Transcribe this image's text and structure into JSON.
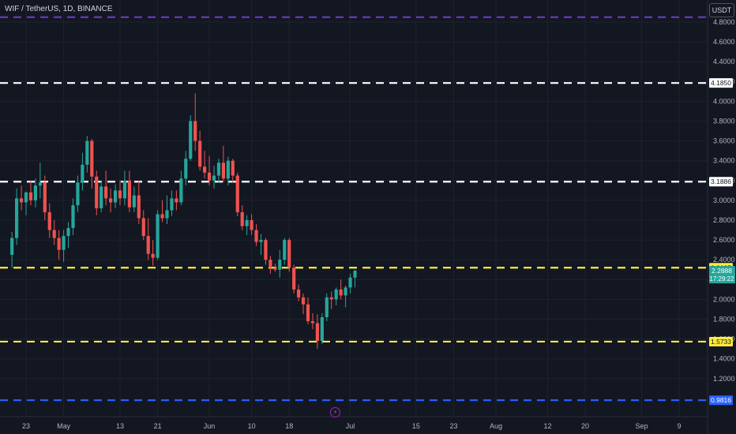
{
  "header": {
    "title": "WIF / TetherUS, 1D, BINANCE",
    "currency": "USDT"
  },
  "chart_data": {
    "type": "candlestick",
    "title": "WIF / TetherUS, 1D, BINANCE",
    "ylim": [
      1.0,
      4.9
    ],
    "y_ticks": [
      "1.2000",
      "1.4000",
      "1.6000",
      "1.8000",
      "2.0000",
      "2.2000",
      "2.4000",
      "2.6000",
      "2.8000",
      "3.0000",
      "3.2000",
      "3.4000",
      "3.6000",
      "3.8000",
      "4.0000",
      "4.2000",
      "4.4000",
      "4.6000",
      "4.8000"
    ],
    "x_ticks": [
      {
        "label": "23",
        "index": 0
      },
      {
        "label": "May",
        "index": 8
      },
      {
        "label": "13",
        "index": 20
      },
      {
        "label": "21",
        "index": 28
      },
      {
        "label": "Jun",
        "index": 39
      },
      {
        "label": "10",
        "index": 48
      },
      {
        "label": "18",
        "index": 56
      },
      {
        "label": "Jul",
        "index": 69
      },
      {
        "label": "15",
        "index": 83
      },
      {
        "label": "23",
        "index": 91
      },
      {
        "label": "Aug",
        "index": 100
      },
      {
        "label": "12",
        "index": 111
      },
      {
        "label": "20",
        "index": 119
      },
      {
        "label": "Sep",
        "index": 131
      },
      {
        "label": "9",
        "index": 139
      }
    ],
    "start_index": -3,
    "grid": true,
    "candles": [
      {
        "o": 2.45,
        "h": 2.68,
        "l": 2.32,
        "c": 2.62
      },
      {
        "o": 2.62,
        "h": 3.12,
        "l": 2.55,
        "c": 3.02
      },
      {
        "o": 3.02,
        "h": 3.15,
        "l": 2.9,
        "c": 2.98
      },
      {
        "o": 2.98,
        "h": 3.09,
        "l": 2.85,
        "c": 3.08
      },
      {
        "o": 3.08,
        "h": 3.2,
        "l": 2.95,
        "c": 3.0
      },
      {
        "o": 3.0,
        "h": 3.22,
        "l": 2.93,
        "c": 3.15
      },
      {
        "o": 3.15,
        "h": 3.38,
        "l": 3.02,
        "c": 3.18
      },
      {
        "o": 3.18,
        "h": 3.25,
        "l": 2.8,
        "c": 2.88
      },
      {
        "o": 2.88,
        "h": 2.97,
        "l": 2.62,
        "c": 2.7
      },
      {
        "o": 2.7,
        "h": 2.8,
        "l": 2.55,
        "c": 2.62
      },
      {
        "o": 2.62,
        "h": 2.7,
        "l": 2.4,
        "c": 2.5
      },
      {
        "o": 2.5,
        "h": 2.7,
        "l": 2.38,
        "c": 2.64
      },
      {
        "o": 2.64,
        "h": 2.78,
        "l": 2.52,
        "c": 2.72
      },
      {
        "o": 2.72,
        "h": 3.02,
        "l": 2.65,
        "c": 2.95
      },
      {
        "o": 2.95,
        "h": 3.25,
        "l": 2.88,
        "c": 3.18
      },
      {
        "o": 3.18,
        "h": 3.48,
        "l": 3.1,
        "c": 3.36
      },
      {
        "o": 3.36,
        "h": 3.65,
        "l": 3.28,
        "c": 3.6
      },
      {
        "o": 3.6,
        "h": 3.62,
        "l": 3.12,
        "c": 3.24
      },
      {
        "o": 3.24,
        "h": 3.3,
        "l": 2.85,
        "c": 2.92
      },
      {
        "o": 2.92,
        "h": 3.2,
        "l": 2.88,
        "c": 3.14
      },
      {
        "o": 3.14,
        "h": 3.3,
        "l": 2.95,
        "c": 3.02
      },
      {
        "o": 3.02,
        "h": 3.12,
        "l": 2.88,
        "c": 2.98
      },
      {
        "o": 2.98,
        "h": 3.16,
        "l": 2.92,
        "c": 3.1
      },
      {
        "o": 3.1,
        "h": 3.2,
        "l": 2.95,
        "c": 3.02
      },
      {
        "o": 3.02,
        "h": 3.3,
        "l": 2.95,
        "c": 3.2
      },
      {
        "o": 3.2,
        "h": 3.3,
        "l": 2.88,
        "c": 2.93
      },
      {
        "o": 2.93,
        "h": 3.14,
        "l": 2.88,
        "c": 3.05
      },
      {
        "o": 3.05,
        "h": 3.2,
        "l": 2.76,
        "c": 2.82
      },
      {
        "o": 2.82,
        "h": 2.9,
        "l": 2.6,
        "c": 2.64
      },
      {
        "o": 2.64,
        "h": 2.82,
        "l": 2.4,
        "c": 2.46
      },
      {
        "o": 2.46,
        "h": 2.6,
        "l": 2.34,
        "c": 2.42
      },
      {
        "o": 2.42,
        "h": 2.9,
        "l": 2.4,
        "c": 2.86
      },
      {
        "o": 2.86,
        "h": 3.0,
        "l": 2.78,
        "c": 2.82
      },
      {
        "o": 2.82,
        "h": 3.05,
        "l": 2.76,
        "c": 2.9
      },
      {
        "o": 2.9,
        "h": 3.1,
        "l": 2.84,
        "c": 3.02
      },
      {
        "o": 3.02,
        "h": 3.1,
        "l": 2.9,
        "c": 2.98
      },
      {
        "o": 2.98,
        "h": 3.3,
        "l": 2.95,
        "c": 3.22
      },
      {
        "o": 3.22,
        "h": 3.5,
        "l": 3.15,
        "c": 3.42
      },
      {
        "o": 3.42,
        "h": 3.86,
        "l": 3.4,
        "c": 3.8
      },
      {
        "o": 3.8,
        "h": 4.08,
        "l": 3.5,
        "c": 3.6
      },
      {
        "o": 3.6,
        "h": 3.7,
        "l": 3.3,
        "c": 3.34
      },
      {
        "o": 3.34,
        "h": 3.5,
        "l": 3.22,
        "c": 3.28
      },
      {
        "o": 3.28,
        "h": 3.45,
        "l": 3.15,
        "c": 3.2
      },
      {
        "o": 3.2,
        "h": 3.35,
        "l": 3.12,
        "c": 3.25
      },
      {
        "o": 3.25,
        "h": 3.42,
        "l": 3.18,
        "c": 3.38
      },
      {
        "o": 3.38,
        "h": 3.55,
        "l": 3.18,
        "c": 3.22
      },
      {
        "o": 3.22,
        "h": 3.44,
        "l": 3.15,
        "c": 3.4
      },
      {
        "o": 3.4,
        "h": 3.42,
        "l": 3.18,
        "c": 3.25
      },
      {
        "o": 3.25,
        "h": 3.28,
        "l": 2.84,
        "c": 2.88
      },
      {
        "o": 2.88,
        "h": 2.95,
        "l": 2.7,
        "c": 2.74
      },
      {
        "o": 2.74,
        "h": 2.85,
        "l": 2.65,
        "c": 2.8
      },
      {
        "o": 2.8,
        "h": 2.86,
        "l": 2.65,
        "c": 2.7
      },
      {
        "o": 2.7,
        "h": 2.76,
        "l": 2.54,
        "c": 2.58
      },
      {
        "o": 2.58,
        "h": 2.66,
        "l": 2.45,
        "c": 2.6
      },
      {
        "o": 2.6,
        "h": 2.62,
        "l": 2.35,
        "c": 2.4
      },
      {
        "o": 2.4,
        "h": 2.44,
        "l": 2.26,
        "c": 2.32
      },
      {
        "o": 2.32,
        "h": 2.36,
        "l": 2.28,
        "c": 2.3
      },
      {
        "o": 2.3,
        "h": 2.5,
        "l": 2.22,
        "c": 2.4
      },
      {
        "o": 2.4,
        "h": 2.62,
        "l": 2.35,
        "c": 2.6
      },
      {
        "o": 2.6,
        "h": 2.62,
        "l": 2.28,
        "c": 2.32
      },
      {
        "o": 2.32,
        "h": 2.35,
        "l": 2.06,
        "c": 2.1
      },
      {
        "o": 2.1,
        "h": 2.15,
        "l": 1.98,
        "c": 2.02
      },
      {
        "o": 2.02,
        "h": 2.06,
        "l": 1.85,
        "c": 1.95
      },
      {
        "o": 1.95,
        "h": 2.02,
        "l": 1.75,
        "c": 1.78
      },
      {
        "o": 1.78,
        "h": 1.86,
        "l": 1.7,
        "c": 1.76
      },
      {
        "o": 1.76,
        "h": 1.85,
        "l": 1.5,
        "c": 1.58
      },
      {
        "o": 1.58,
        "h": 1.86,
        "l": 1.55,
        "c": 1.82
      },
      {
        "o": 1.82,
        "h": 2.06,
        "l": 1.78,
        "c": 2.02
      },
      {
        "o": 2.02,
        "h": 2.08,
        "l": 1.9,
        "c": 2.0
      },
      {
        "o": 2.0,
        "h": 2.12,
        "l": 1.94,
        "c": 2.1
      },
      {
        "o": 2.1,
        "h": 2.2,
        "l": 2.0,
        "c": 2.04
      },
      {
        "o": 2.04,
        "h": 2.14,
        "l": 1.92,
        "c": 2.12
      },
      {
        "o": 2.12,
        "h": 2.26,
        "l": 2.06,
        "c": 2.22
      },
      {
        "o": 2.22,
        "h": 2.3,
        "l": 2.12,
        "c": 2.289
      }
    ],
    "levels": [
      {
        "value": 4.85,
        "color": "#673ab7",
        "label": "4.8500"
      },
      {
        "value": 4.185,
        "color": "#ffffff",
        "label": "4.1850"
      },
      {
        "value": 3.1886,
        "color": "#ffffff",
        "label": "3.1886"
      },
      {
        "value": 2.3197,
        "color": "#ffeb3b",
        "label": "2.3197"
      },
      {
        "value": 1.5733,
        "color": "#ffeb3b",
        "label": "1.5733"
      },
      {
        "value": 0.9816,
        "color": "#2962ff",
        "label": "0.9816"
      }
    ],
    "last_price": {
      "value": 2.2888,
      "label": "2.2888",
      "countdown": "17:29:22",
      "color": "#26a69a"
    },
    "colors": {
      "up": "#26a69a",
      "down": "#ef5350",
      "grid": "#1e222d",
      "background": "#131722"
    }
  }
}
